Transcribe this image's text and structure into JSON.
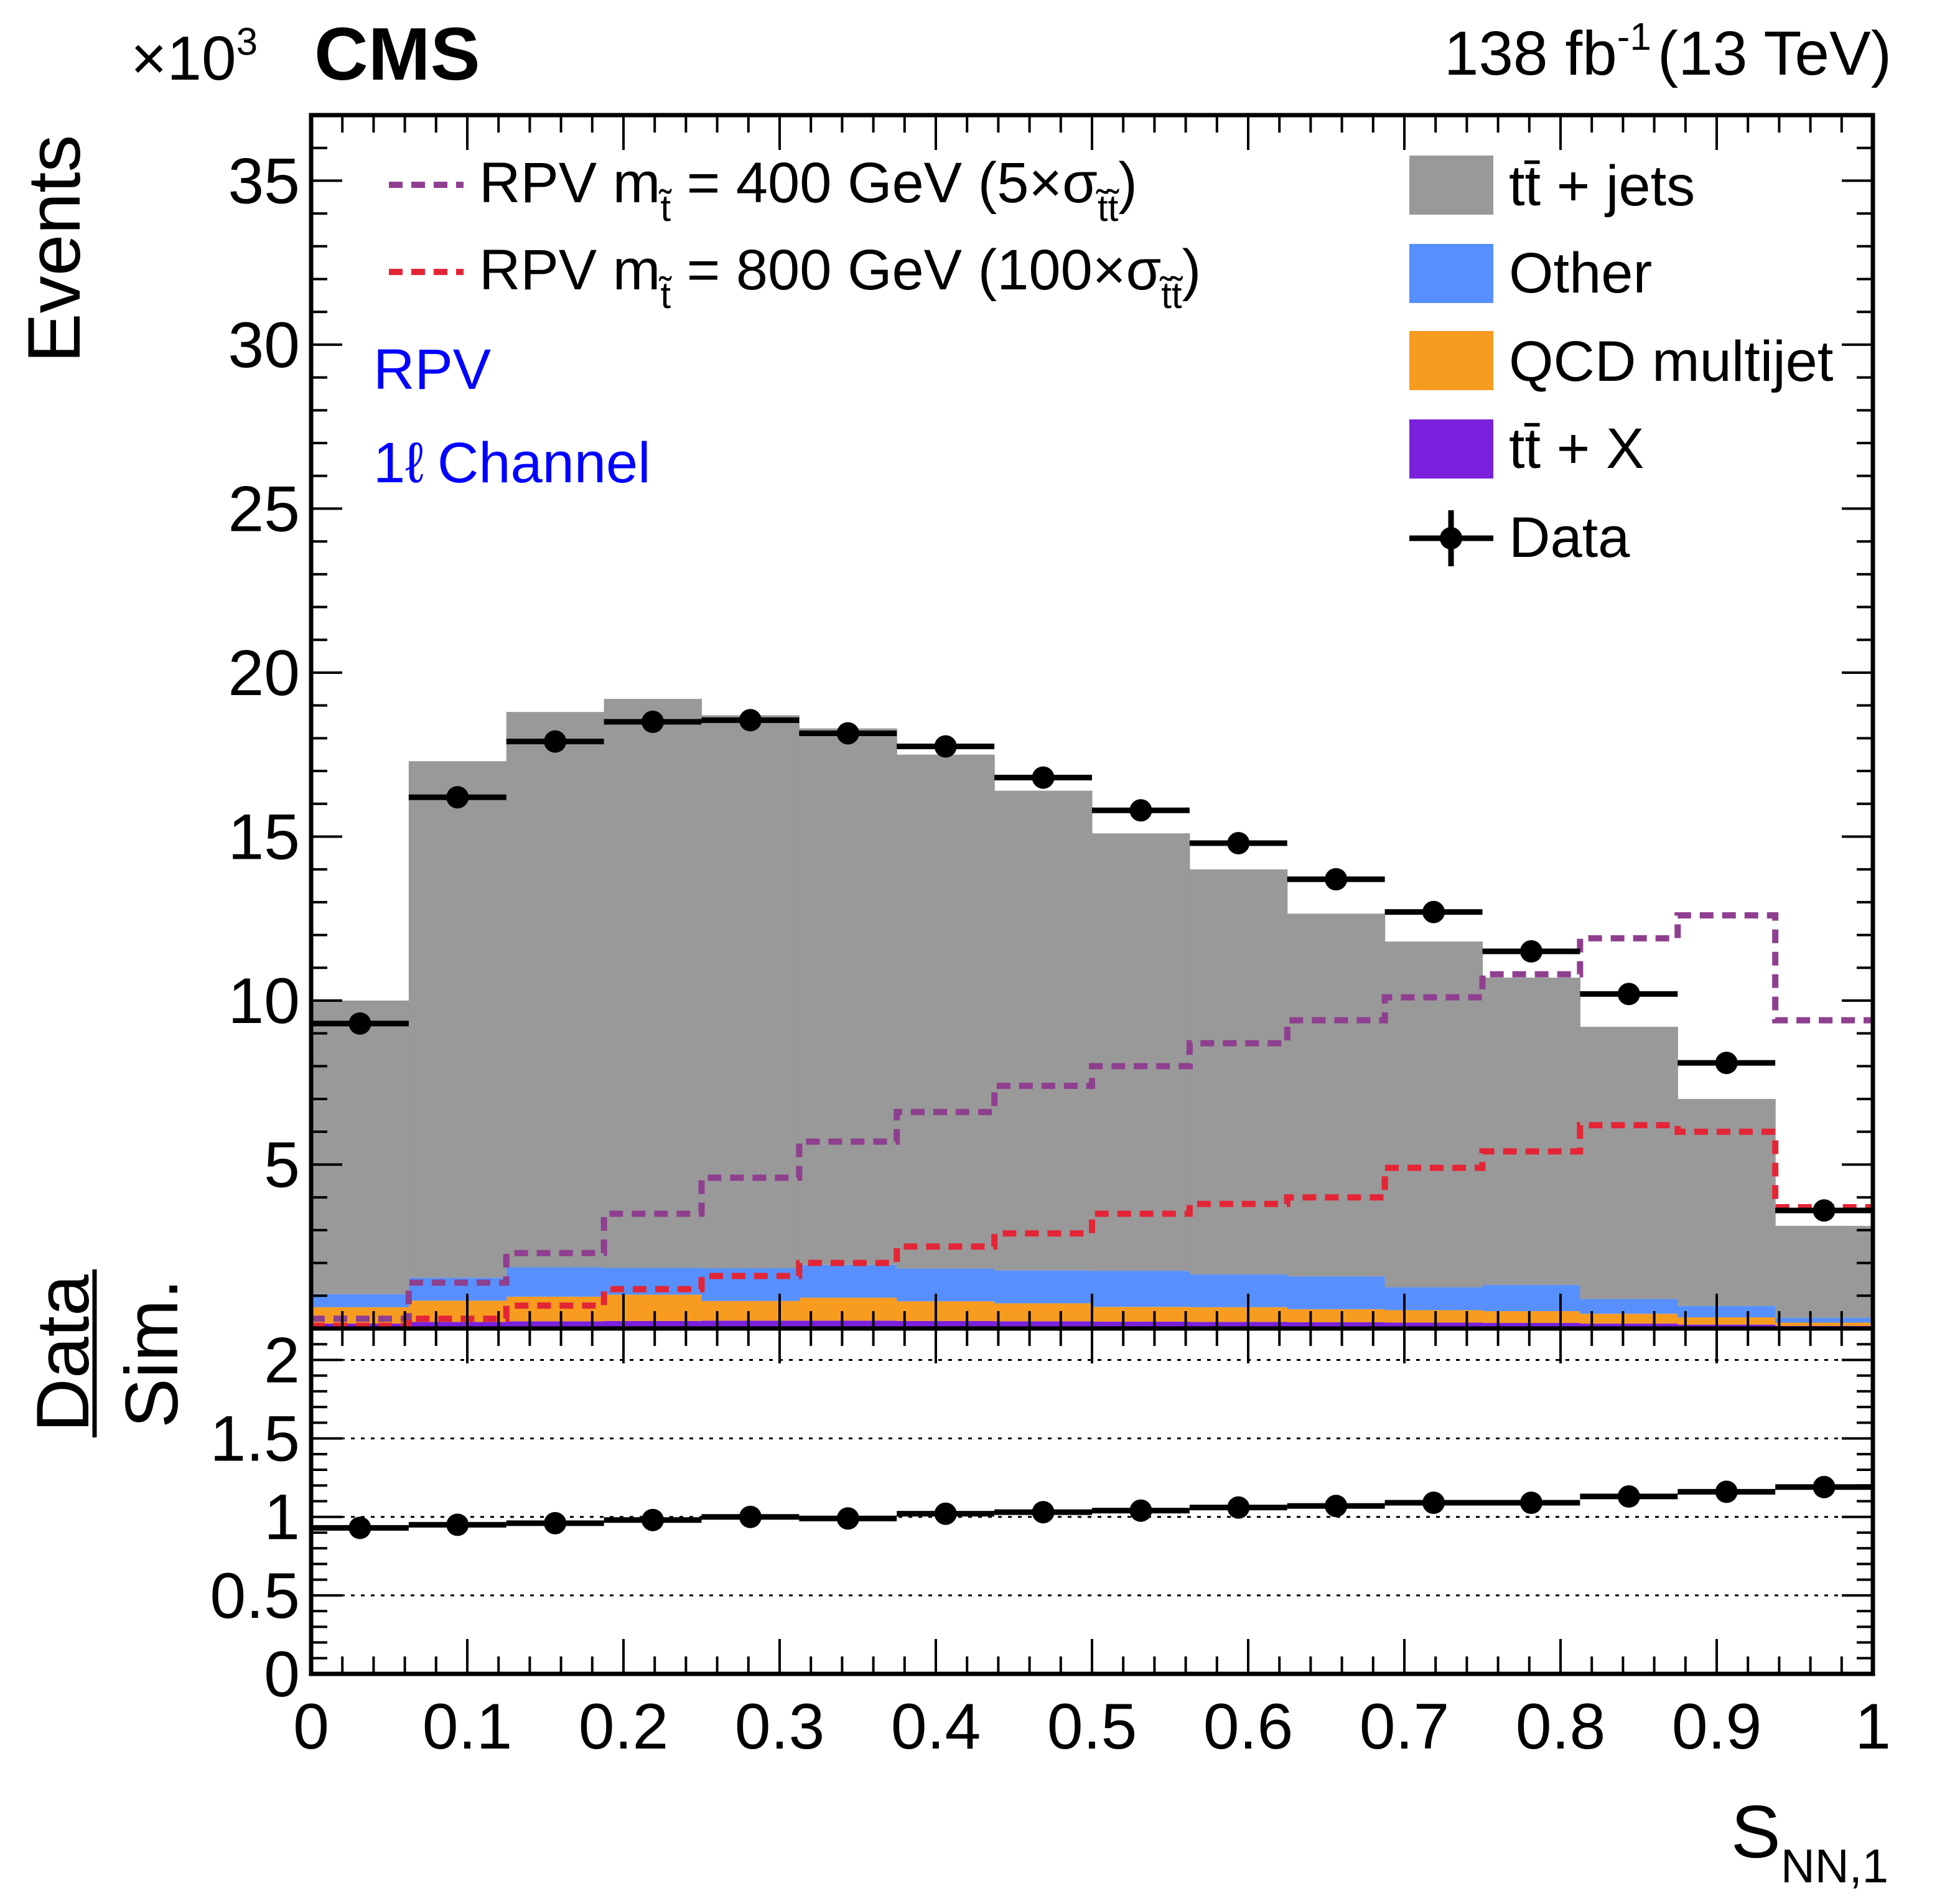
{
  "header": {
    "exponent_prefix": "×10",
    "exponent_power": "3",
    "experiment": "CMS",
    "lumi_value": "138 fb",
    "lumi_power": "-1",
    "lumi_energy": "(13 TeV)"
  },
  "annotations": {
    "analysis": "RPV",
    "channel_symbol": "1ℓ",
    "channel_text": "Channel"
  },
  "legend_left": [
    {
      "prefix": "RPV m",
      "sub": "t̃",
      "main": " = 400 GeV (5×σ",
      "sub2": "t̃t̃",
      "suffix": ")",
      "color": "#8f3f8f"
    },
    {
      "prefix": "RPV m",
      "sub": "t̃",
      "main": " = 800 GeV (100×σ",
      "sub2": "t̃t̃",
      "suffix": ")",
      "color": "#e42536"
    }
  ],
  "legend_right": [
    {
      "label": "tt̄ + jets",
      "color": "#999999"
    },
    {
      "label": "Other",
      "color": "#5790fc"
    },
    {
      "label": "QCD multijet",
      "color": "#f89c20"
    },
    {
      "label": "tt̄ + X",
      "color": "#7a21dd"
    },
    {
      "label": "Data",
      "color": "#000000"
    }
  ],
  "chart_data": [
    {
      "type": "bar",
      "stacked": true,
      "title": "",
      "xlabel": "S",
      "xlabel_sub": "NN,1",
      "ylabel": "Events",
      "ylim": [
        0,
        37000
      ],
      "xlim": [
        0,
        1
      ],
      "bin_edges": [
        0,
        0.0625,
        0.125,
        0.1875,
        0.25,
        0.3125,
        0.375,
        0.4375,
        0.5,
        0.5625,
        0.625,
        0.6875,
        0.75,
        0.8125,
        0.875,
        0.9375,
        1.0
      ],
      "y_ticks": [
        5000,
        10000,
        15000,
        20000,
        25000,
        30000,
        35000
      ],
      "y_tick_labels": [
        "5",
        "10",
        "15",
        "20",
        "25",
        "30",
        "35"
      ],
      "series": [
        {
          "name": "tt̄ + X",
          "values": [
            150,
            200,
            220,
            230,
            240,
            240,
            230,
            220,
            210,
            200,
            190,
            180,
            170,
            150,
            120,
            80
          ]
        },
        {
          "name": "QCD multijet",
          "values": [
            500,
            650,
            750,
            800,
            600,
            700,
            600,
            550,
            450,
            450,
            400,
            380,
            360,
            300,
            220,
            100
          ]
        },
        {
          "name": "Other",
          "values": [
            400,
            700,
            900,
            820,
            1000,
            1000,
            1000,
            1000,
            1100,
            1000,
            1000,
            700,
            800,
            450,
            350,
            150
          ]
        },
        {
          "name": "tt̄ + jets",
          "values": [
            8950,
            15750,
            16930,
            17350,
            16860,
            16360,
            15670,
            14630,
            13340,
            12350,
            11060,
            10540,
            9370,
            8300,
            6310,
            2800
          ]
        },
        {
          "name": "RPV m_t̃ = 400 GeV (5×σ_t̃t̃)",
          "type": "step",
          "values": [
            300,
            1400,
            2300,
            3500,
            4600,
            5700,
            6600,
            7400,
            8000,
            8700,
            9400,
            10100,
            10800,
            11900,
            12600,
            9400
          ]
        },
        {
          "name": "RPV m_t̃ = 800 GeV (100×σ_t̃t̃)",
          "type": "step",
          "values": [
            80,
            300,
            700,
            1200,
            1600,
            2000,
            2500,
            2900,
            3500,
            3800,
            4000,
            4900,
            5400,
            6200,
            6000,
            3700
          ]
        },
        {
          "name": "Data",
          "type": "points",
          "values": [
            9300,
            16200,
            17900,
            18500,
            18550,
            18150,
            17750,
            16800,
            15800,
            14800,
            13700,
            12700,
            11500,
            10200,
            8100,
            3600
          ]
        }
      ]
    },
    {
      "type": "scatter",
      "ylabel": "Data/Sim.",
      "ylabel_num": "Data",
      "ylabel_den": "Sim.",
      "ylim": [
        0,
        2.2
      ],
      "xlim": [
        0,
        1
      ],
      "y_ticks": [
        0,
        0.5,
        1,
        1.5,
        2
      ],
      "y_tick_labels": [
        "0",
        "0.5",
        "1",
        "1.5",
        "2"
      ],
      "x_ticks": [
        0,
        0.1,
        0.2,
        0.3,
        0.4,
        0.5,
        0.6,
        0.7,
        0.8,
        0.9,
        1
      ],
      "x_tick_labels": [
        "0",
        "0.1",
        "0.2",
        "0.3",
        "0.4",
        "0.5",
        "0.6",
        "0.7",
        "0.8",
        "0.9",
        "1"
      ],
      "reference_lines": [
        0.5,
        1,
        1.5,
        2
      ],
      "values": [
        0.93,
        0.95,
        0.96,
        0.98,
        1.0,
        0.99,
        1.02,
        1.03,
        1.04,
        1.06,
        1.07,
        1.09,
        1.09,
        1.13,
        1.16,
        1.19
      ]
    }
  ]
}
